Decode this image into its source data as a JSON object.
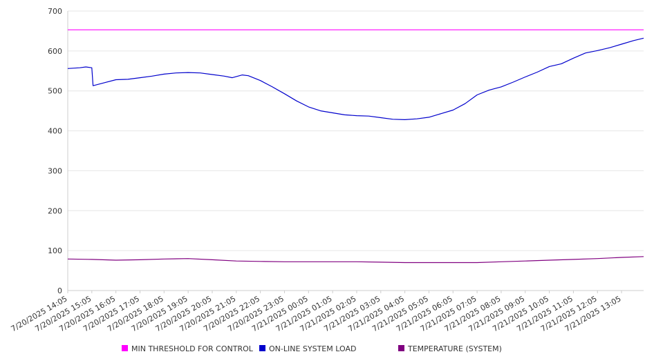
{
  "chart_data": {
    "type": "line",
    "title": "",
    "xlabel": "",
    "ylabel": "",
    "ylim": [
      0,
      700
    ],
    "yticks": [
      0,
      100,
      200,
      300,
      400,
      500,
      600,
      700
    ],
    "grid": true,
    "legend_position": "bottom",
    "x_tick_labels": [
      "7/20/2025 14:05",
      "7/20/2025 15:05",
      "7/20/2025 16:05",
      "7/20/2025 17:05",
      "7/20/2025 18:05",
      "7/20/2025 19:05",
      "7/20/2025 20:05",
      "7/20/2025 21:05",
      "7/20/2025 22:05",
      "7/20/2025 23:05",
      "7/21/2025 00:05",
      "7/21/2025 01:05",
      "7/21/2025 02:05",
      "7/21/2025 03:05",
      "7/21/2025 04:05",
      "7/21/2025 05:05",
      "7/21/2025 06:05",
      "7/21/2025 07:05",
      "7/21/2025 08:05",
      "7/21/2025 09:05",
      "7/21/2025 10:05",
      "7/21/2025 11:05",
      "7/21/2025 12:05",
      "7/21/2025 13:05"
    ],
    "x_range": [
      "7/20/2025 14:05",
      "7/21/2025 14:00"
    ],
    "series": [
      {
        "name": "MIN THRESHOLD FOR CONTROL",
        "color": "#ff00ff",
        "points": [
          [
            "7/20/2025 14:05",
            653
          ],
          [
            "7/21/2025 14:00",
            653
          ]
        ]
      },
      {
        "name": "ON-LINE SYSTEM LOAD",
        "color": "#0000cc",
        "points": [
          [
            "7/20/2025 14:05",
            556
          ],
          [
            "7/20/2025 14:35",
            558
          ],
          [
            "7/20/2025 14:50",
            560
          ],
          [
            "7/20/2025 15:05",
            558
          ],
          [
            "7/20/2025 15:08",
            513
          ],
          [
            "7/20/2025 15:35",
            520
          ],
          [
            "7/20/2025 16:05",
            528
          ],
          [
            "7/20/2025 16:35",
            529
          ],
          [
            "7/20/2025 17:05",
            533
          ],
          [
            "7/20/2025 17:35",
            537
          ],
          [
            "7/20/2025 18:05",
            542
          ],
          [
            "7/20/2025 18:35",
            545
          ],
          [
            "7/20/2025 19:05",
            546
          ],
          [
            "7/20/2025 19:35",
            545
          ],
          [
            "7/20/2025 20:05",
            541
          ],
          [
            "7/20/2025 20:35",
            537
          ],
          [
            "7/20/2025 20:55",
            533
          ],
          [
            "7/20/2025 21:20",
            540
          ],
          [
            "7/20/2025 21:35",
            538
          ],
          [
            "7/20/2025 22:05",
            526
          ],
          [
            "7/20/2025 22:35",
            510
          ],
          [
            "7/20/2025 23:05",
            493
          ],
          [
            "7/20/2025 23:35",
            475
          ],
          [
            "7/21/2025 00:05",
            460
          ],
          [
            "7/21/2025 00:35",
            450
          ],
          [
            "7/21/2025 01:05",
            445
          ],
          [
            "7/21/2025 01:35",
            440
          ],
          [
            "7/21/2025 02:05",
            438
          ],
          [
            "7/21/2025 02:35",
            437
          ],
          [
            "7/21/2025 03:05",
            433
          ],
          [
            "7/21/2025 03:35",
            429
          ],
          [
            "7/21/2025 04:05",
            428
          ],
          [
            "7/21/2025 04:35",
            430
          ],
          [
            "7/21/2025 05:05",
            434
          ],
          [
            "7/21/2025 05:35",
            443
          ],
          [
            "7/21/2025 06:05",
            452
          ],
          [
            "7/21/2025 06:35",
            468
          ],
          [
            "7/21/2025 07:05",
            490
          ],
          [
            "7/21/2025 07:35",
            502
          ],
          [
            "7/21/2025 08:05",
            510
          ],
          [
            "7/21/2025 08:35",
            522
          ],
          [
            "7/21/2025 09:05",
            535
          ],
          [
            "7/21/2025 09:35",
            547
          ],
          [
            "7/21/2025 10:05",
            561
          ],
          [
            "7/21/2025 10:35",
            568
          ],
          [
            "7/21/2025 11:05",
            582
          ],
          [
            "7/21/2025 11:35",
            595
          ],
          [
            "7/21/2025 12:05",
            601
          ],
          [
            "7/21/2025 12:35",
            608
          ],
          [
            "7/21/2025 13:05",
            617
          ],
          [
            "7/21/2025 13:35",
            626
          ],
          [
            "7/21/2025 14:00",
            632
          ]
        ]
      },
      {
        "name": "TEMPERATURE (SYSTEM)",
        "color": "#800080",
        "points": [
          [
            "7/20/2025 14:05",
            79
          ],
          [
            "7/20/2025 15:05",
            78
          ],
          [
            "7/20/2025 16:05",
            76
          ],
          [
            "7/20/2025 17:05",
            77
          ],
          [
            "7/20/2025 18:05",
            79
          ],
          [
            "7/20/2025 19:05",
            80
          ],
          [
            "7/20/2025 20:05",
            77
          ],
          [
            "7/20/2025 21:05",
            74
          ],
          [
            "7/20/2025 22:05",
            73
          ],
          [
            "7/20/2025 23:05",
            72
          ],
          [
            "7/21/2025 00:05",
            72
          ],
          [
            "7/21/2025 01:05",
            72
          ],
          [
            "7/21/2025 02:05",
            72
          ],
          [
            "7/21/2025 03:05",
            71
          ],
          [
            "7/21/2025 04:05",
            70
          ],
          [
            "7/21/2025 05:05",
            70
          ],
          [
            "7/21/2025 06:05",
            70
          ],
          [
            "7/21/2025 07:05",
            70
          ],
          [
            "7/21/2025 08:05",
            72
          ],
          [
            "7/21/2025 09:05",
            74
          ],
          [
            "7/21/2025 10:05",
            76
          ],
          [
            "7/21/2025 11:05",
            78
          ],
          [
            "7/21/2025 12:05",
            80
          ],
          [
            "7/21/2025 13:05",
            83
          ],
          [
            "7/21/2025 14:00",
            85
          ]
        ]
      }
    ]
  }
}
